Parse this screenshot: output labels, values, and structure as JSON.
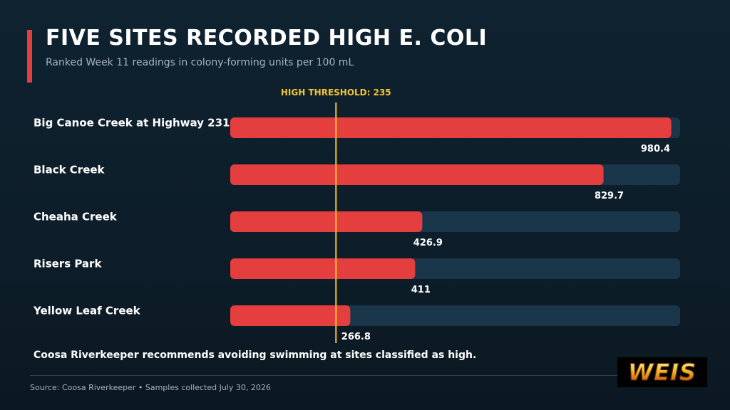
{
  "header": {
    "title": "FIVE SITES RECORDED HIGH E. COLI",
    "subtitle": "Ranked Week 11 readings in colony-forming units per 100 mL"
  },
  "chart_data": {
    "type": "bar",
    "orientation": "horizontal",
    "title": "FIVE SITES RECORDED HIGH E. COLI",
    "subtitle": "Ranked Week 11 readings in colony-forming units per 100 mL",
    "categories": [
      "Big Canoe Creek at Highway 231",
      "Black Creek",
      "Cheaha Creek",
      "Risers Park",
      "Yellow Leaf Creek"
    ],
    "values": [
      980.4,
      829.7,
      426.9,
      411,
      266.8
    ],
    "value_labels": [
      "980.4",
      "829.7",
      "426.9",
      "411",
      "266.8"
    ],
    "xlim": [
      0,
      1000
    ],
    "threshold": {
      "value": 235,
      "label": "HIGH THRESHOLD: 235"
    },
    "legend": "none",
    "grid": false
  },
  "colors": {
    "bar": "#e53e3e",
    "track": "#19364a",
    "threshold": "#f4c430",
    "label": "#ffffff"
  },
  "note": "Coosa Riverkeeper recommends avoiding swimming at sites classified as high.",
  "footer": {
    "source": "Source: Coosa Riverkeeper • Samples collected July 30, 2026"
  },
  "logo": {
    "text": "WEIS"
  }
}
